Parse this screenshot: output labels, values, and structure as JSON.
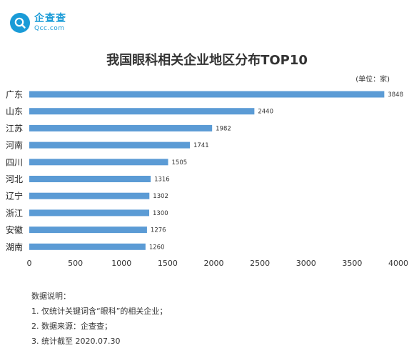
{
  "brand": {
    "name": "企查查",
    "sub": "Qcc.com"
  },
  "chart_data": {
    "type": "bar",
    "orientation": "horizontal",
    "title": "我国眼科相关企业地区分布TOP10",
    "unit_note": "(单位：家)",
    "categories": [
      "广东",
      "山东",
      "江苏",
      "河南",
      "四川",
      "河北",
      "辽宁",
      "浙江",
      "安徽",
      "湖南"
    ],
    "values": [
      3848,
      2440,
      1982,
      1741,
      1505,
      1316,
      1302,
      1300,
      1276,
      1260
    ],
    "xlim": [
      0,
      4000
    ],
    "xticks": [
      0,
      500,
      1000,
      1500,
      2000,
      2500,
      3000,
      3500,
      4000
    ],
    "bar_color": "#5b9bd5",
    "grid": false
  },
  "notes": {
    "heading": "数据说明：",
    "items": [
      "1. 仅统计关键词含“眼科”的相关企业；",
      "2. 数据来源：企查查；",
      "3. 统计截至 2020.07.30"
    ]
  }
}
